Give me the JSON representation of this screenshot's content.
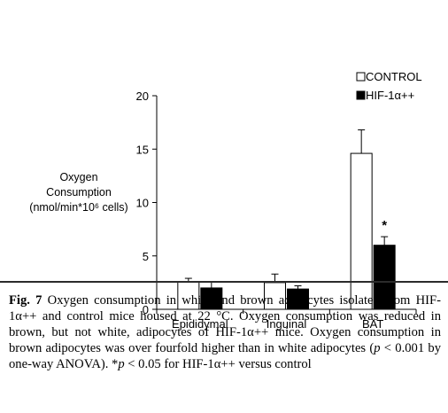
{
  "chart_data": {
    "type": "bar",
    "categories": [
      "Epididymal",
      "Inguinal",
      "BAT"
    ],
    "series": [
      {
        "name": "CONTROL",
        "color": "#ffffff",
        "values": [
          2.6,
          2.5,
          14.6
        ],
        "errors": [
          0.3,
          0.8,
          2.2
        ]
      },
      {
        "name": "HIF-1α++",
        "color": "#000000",
        "values": [
          2.0,
          1.9,
          6.0
        ],
        "errors": [
          0.6,
          0.3,
          0.8
        ]
      }
    ],
    "ylabel_lines": [
      "Oxygen",
      "Consumption",
      "(nmol/min*10⁶ cells)"
    ],
    "ylim": [
      0,
      20
    ],
    "yticks": [
      0,
      5,
      10,
      15,
      20
    ],
    "legend_position": "top-right",
    "annotations": [
      {
        "category": "BAT",
        "series": "HIF-1α++",
        "text": "*"
      }
    ],
    "grid": false
  },
  "caption": {
    "label": "Fig. 7",
    "line1": "Oxygen consumption in white and brown adipocytes isolated from HIF-1α++ and control mice housed at 22 °C. Oxygen consumption was reduced in brown, but not white, adipocytes of HIF-1α++ mice. Oxygen consumption in brown adipocytes was over fourfold higher than in white adipocytes (",
    "p_symbol": "p",
    "line2": " < 0.001 by one-way ANOVA). *",
    "line3": " < 0.05 for HIF-1α++ versus control"
  }
}
